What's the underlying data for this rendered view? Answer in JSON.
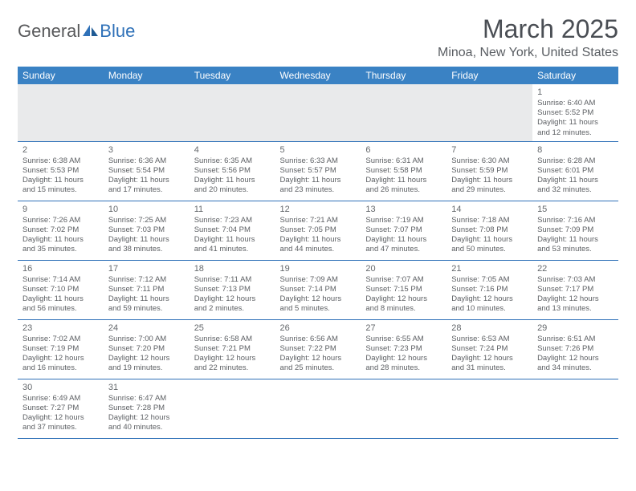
{
  "brand": {
    "part1": "General",
    "part2": "Blue"
  },
  "title": "March 2025",
  "location": "Minoa, New York, United States",
  "colors": {
    "header_bg": "#3a82c4",
    "header_fg": "#ffffff",
    "border": "#2f71b8",
    "text": "#5c5f63",
    "title": "#4a4e54"
  },
  "weekdays": [
    "Sunday",
    "Monday",
    "Tuesday",
    "Wednesday",
    "Thursday",
    "Friday",
    "Saturday"
  ],
  "weeks": [
    [
      null,
      null,
      null,
      null,
      null,
      null,
      {
        "n": "1",
        "sr": "Sunrise: 6:40 AM",
        "ss": "Sunset: 5:52 PM",
        "d1": "Daylight: 11 hours",
        "d2": "and 12 minutes."
      }
    ],
    [
      {
        "n": "2",
        "sr": "Sunrise: 6:38 AM",
        "ss": "Sunset: 5:53 PM",
        "d1": "Daylight: 11 hours",
        "d2": "and 15 minutes."
      },
      {
        "n": "3",
        "sr": "Sunrise: 6:36 AM",
        "ss": "Sunset: 5:54 PM",
        "d1": "Daylight: 11 hours",
        "d2": "and 17 minutes."
      },
      {
        "n": "4",
        "sr": "Sunrise: 6:35 AM",
        "ss": "Sunset: 5:56 PM",
        "d1": "Daylight: 11 hours",
        "d2": "and 20 minutes."
      },
      {
        "n": "5",
        "sr": "Sunrise: 6:33 AM",
        "ss": "Sunset: 5:57 PM",
        "d1": "Daylight: 11 hours",
        "d2": "and 23 minutes."
      },
      {
        "n": "6",
        "sr": "Sunrise: 6:31 AM",
        "ss": "Sunset: 5:58 PM",
        "d1": "Daylight: 11 hours",
        "d2": "and 26 minutes."
      },
      {
        "n": "7",
        "sr": "Sunrise: 6:30 AM",
        "ss": "Sunset: 5:59 PM",
        "d1": "Daylight: 11 hours",
        "d2": "and 29 minutes."
      },
      {
        "n": "8",
        "sr": "Sunrise: 6:28 AM",
        "ss": "Sunset: 6:01 PM",
        "d1": "Daylight: 11 hours",
        "d2": "and 32 minutes."
      }
    ],
    [
      {
        "n": "9",
        "sr": "Sunrise: 7:26 AM",
        "ss": "Sunset: 7:02 PM",
        "d1": "Daylight: 11 hours",
        "d2": "and 35 minutes."
      },
      {
        "n": "10",
        "sr": "Sunrise: 7:25 AM",
        "ss": "Sunset: 7:03 PM",
        "d1": "Daylight: 11 hours",
        "d2": "and 38 minutes."
      },
      {
        "n": "11",
        "sr": "Sunrise: 7:23 AM",
        "ss": "Sunset: 7:04 PM",
        "d1": "Daylight: 11 hours",
        "d2": "and 41 minutes."
      },
      {
        "n": "12",
        "sr": "Sunrise: 7:21 AM",
        "ss": "Sunset: 7:05 PM",
        "d1": "Daylight: 11 hours",
        "d2": "and 44 minutes."
      },
      {
        "n": "13",
        "sr": "Sunrise: 7:19 AM",
        "ss": "Sunset: 7:07 PM",
        "d1": "Daylight: 11 hours",
        "d2": "and 47 minutes."
      },
      {
        "n": "14",
        "sr": "Sunrise: 7:18 AM",
        "ss": "Sunset: 7:08 PM",
        "d1": "Daylight: 11 hours",
        "d2": "and 50 minutes."
      },
      {
        "n": "15",
        "sr": "Sunrise: 7:16 AM",
        "ss": "Sunset: 7:09 PM",
        "d1": "Daylight: 11 hours",
        "d2": "and 53 minutes."
      }
    ],
    [
      {
        "n": "16",
        "sr": "Sunrise: 7:14 AM",
        "ss": "Sunset: 7:10 PM",
        "d1": "Daylight: 11 hours",
        "d2": "and 56 minutes."
      },
      {
        "n": "17",
        "sr": "Sunrise: 7:12 AM",
        "ss": "Sunset: 7:11 PM",
        "d1": "Daylight: 11 hours",
        "d2": "and 59 minutes."
      },
      {
        "n": "18",
        "sr": "Sunrise: 7:11 AM",
        "ss": "Sunset: 7:13 PM",
        "d1": "Daylight: 12 hours",
        "d2": "and 2 minutes."
      },
      {
        "n": "19",
        "sr": "Sunrise: 7:09 AM",
        "ss": "Sunset: 7:14 PM",
        "d1": "Daylight: 12 hours",
        "d2": "and 5 minutes."
      },
      {
        "n": "20",
        "sr": "Sunrise: 7:07 AM",
        "ss": "Sunset: 7:15 PM",
        "d1": "Daylight: 12 hours",
        "d2": "and 8 minutes."
      },
      {
        "n": "21",
        "sr": "Sunrise: 7:05 AM",
        "ss": "Sunset: 7:16 PM",
        "d1": "Daylight: 12 hours",
        "d2": "and 10 minutes."
      },
      {
        "n": "22",
        "sr": "Sunrise: 7:03 AM",
        "ss": "Sunset: 7:17 PM",
        "d1": "Daylight: 12 hours",
        "d2": "and 13 minutes."
      }
    ],
    [
      {
        "n": "23",
        "sr": "Sunrise: 7:02 AM",
        "ss": "Sunset: 7:19 PM",
        "d1": "Daylight: 12 hours",
        "d2": "and 16 minutes."
      },
      {
        "n": "24",
        "sr": "Sunrise: 7:00 AM",
        "ss": "Sunset: 7:20 PM",
        "d1": "Daylight: 12 hours",
        "d2": "and 19 minutes."
      },
      {
        "n": "25",
        "sr": "Sunrise: 6:58 AM",
        "ss": "Sunset: 7:21 PM",
        "d1": "Daylight: 12 hours",
        "d2": "and 22 minutes."
      },
      {
        "n": "26",
        "sr": "Sunrise: 6:56 AM",
        "ss": "Sunset: 7:22 PM",
        "d1": "Daylight: 12 hours",
        "d2": "and 25 minutes."
      },
      {
        "n": "27",
        "sr": "Sunrise: 6:55 AM",
        "ss": "Sunset: 7:23 PM",
        "d1": "Daylight: 12 hours",
        "d2": "and 28 minutes."
      },
      {
        "n": "28",
        "sr": "Sunrise: 6:53 AM",
        "ss": "Sunset: 7:24 PM",
        "d1": "Daylight: 12 hours",
        "d2": "and 31 minutes."
      },
      {
        "n": "29",
        "sr": "Sunrise: 6:51 AM",
        "ss": "Sunset: 7:26 PM",
        "d1": "Daylight: 12 hours",
        "d2": "and 34 minutes."
      }
    ],
    [
      {
        "n": "30",
        "sr": "Sunrise: 6:49 AM",
        "ss": "Sunset: 7:27 PM",
        "d1": "Daylight: 12 hours",
        "d2": "and 37 minutes."
      },
      {
        "n": "31",
        "sr": "Sunrise: 6:47 AM",
        "ss": "Sunset: 7:28 PM",
        "d1": "Daylight: 12 hours",
        "d2": "and 40 minutes."
      },
      null,
      null,
      null,
      null,
      null
    ]
  ]
}
